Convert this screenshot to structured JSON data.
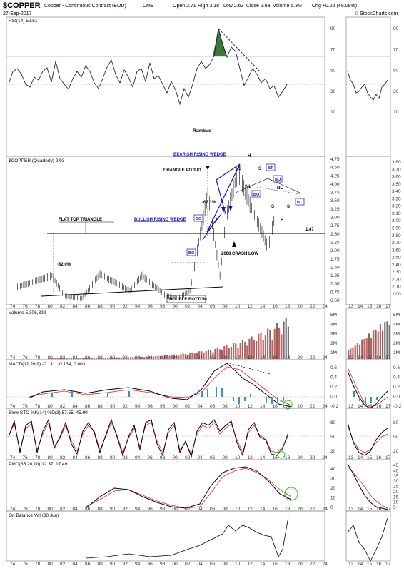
{
  "header": {
    "symbol": "$COPPER",
    "description": "Copper - Continuous Contract (EOD)",
    "exchange": "CME",
    "date": "27-Sep-2017",
    "open": "Open 2.71",
    "high": "High 3.18",
    "low": "Low 2.63",
    "close": "Close 2.93",
    "volume": "Volume 5.3M",
    "change": "Chg +0.22 (+8.08%)",
    "watermark": "© StockCharts.com"
  },
  "rsi_panel": {
    "label": "RSI(14) 52.51",
    "ticks": [
      "90",
      "70",
      "50",
      "30",
      "10"
    ],
    "author": "Rambus"
  },
  "price_panel": {
    "label": "$COPPER (Quarterly) 2.93",
    "ticks": [
      "4.75",
      "4.50",
      "4.25",
      "4.00",
      "3.75",
      "3.50",
      "3.25",
      "3.00",
      "2.75",
      "2.50",
      "2.25",
      "2.00",
      "1.75",
      "1.50",
      "1.25",
      "1.00",
      "0.75",
      "0.50"
    ],
    "inset_ticks": [
      "3.80",
      "3.70",
      "3.60",
      "3.50",
      "3.40",
      "3.30",
      "3.20",
      "3.10",
      "3.00",
      "2.90",
      "2.80",
      "2.70",
      "2.60",
      "2.50",
      "2.40",
      "2.30",
      "2.20",
      "2.10",
      "2.00"
    ]
  },
  "annotations": {
    "flat_top": "FLAT TOP TRIANGLE",
    "bearish": "BEARISH RISING WEDGE",
    "bullish": "BULLISH RISING WEDGE",
    "triangle_po": "TRIANGLE PO 3.81",
    "double_bottom": "DOUBLE BOTTOM",
    "crash": "2008 CRASH LOW",
    "pct_82": "-82.0%",
    "pct_62": "-62.1%",
    "level": "1.47",
    "bo1": "BO",
    "bo2": "BO",
    "bo3": "BO",
    "bo4": "BO",
    "bt1": "BT",
    "bt2": "BT",
    "hs_h1": "H",
    "hs_s1": "S",
    "hs_s2": "S",
    "hs_nl": "NL",
    "hs_s3": "S",
    "hs_s4": "S",
    "hs_h2": "H",
    "hs_nl2": "NL"
  },
  "volume_panel": {
    "label": "Volume 5,306,892",
    "ticks": [
      "5M",
      "4M",
      "3M",
      "2M",
      "1M"
    ]
  },
  "macd_panel": {
    "label": "MACD(12,26,9) -0.131, -0.134, 0.003",
    "ticks": [
      "0.6",
      "0.4",
      "0.2",
      "0.0",
      "-0.2"
    ]
  },
  "sto_panel": {
    "label": "Slow STO %K(14) %D(3) 57.55, 45.90",
    "ticks": [
      "80",
      "50",
      "20"
    ]
  },
  "pmo_panel": {
    "label": "PMO(35,20,10) 12.37, 17.49",
    "ticks": [
      "40",
      "30",
      "20",
      "10",
      "0"
    ],
    "inset_ticks": [
      "45",
      "40",
      "35",
      "30",
      "25",
      "20",
      "15",
      "10",
      "5"
    ]
  },
  "obv_panel": {
    "label": "On Balance Vol (30 Jun)"
  },
  "x_axis": {
    "years": [
      "74",
      "76",
      "78",
      "80",
      "82",
      "84",
      "86",
      "88",
      "90",
      "92",
      "94",
      "96",
      "98",
      "00",
      "02",
      "04",
      "06",
      "08",
      "10",
      "12",
      "14",
      "16",
      "18",
      "20",
      "22",
      "24"
    ],
    "inset_years": [
      "13",
      "14",
      "15",
      "16",
      "17"
    ]
  },
  "colors": {
    "up": "#000000",
    "volume_red": "#d45a5a",
    "volume_gray": "#707070",
    "signal": "#e52020",
    "macd_hist": "#3a8fc8",
    "wedge_blue": "#1515c8",
    "rsi_fill": "#3b7a3b",
    "circle": "#19c819"
  },
  "chart_data": {
    "type": "line",
    "title": "$COPPER (Quarterly) 2.93",
    "x": [
      "1974",
      "1980",
      "1982",
      "1985",
      "1988",
      "1990",
      "1993",
      "1995",
      "1999",
      "2001",
      "2003",
      "2006",
      "2008",
      "2009",
      "2011",
      "2013",
      "2015",
      "2016",
      "2017"
    ],
    "series": [
      {
        "name": "$COPPER",
        "values": [
          0.95,
          1.3,
          0.7,
          0.62,
          1.35,
          1.15,
          0.85,
          1.3,
          0.7,
          0.62,
          0.85,
          3.75,
          1.3,
          3.0,
          4.4,
          3.4,
          2.6,
          2.1,
          2.93
        ]
      }
    ],
    "ylim": [
      0.5,
      4.75
    ],
    "ylabel": "",
    "xlabel": ""
  }
}
